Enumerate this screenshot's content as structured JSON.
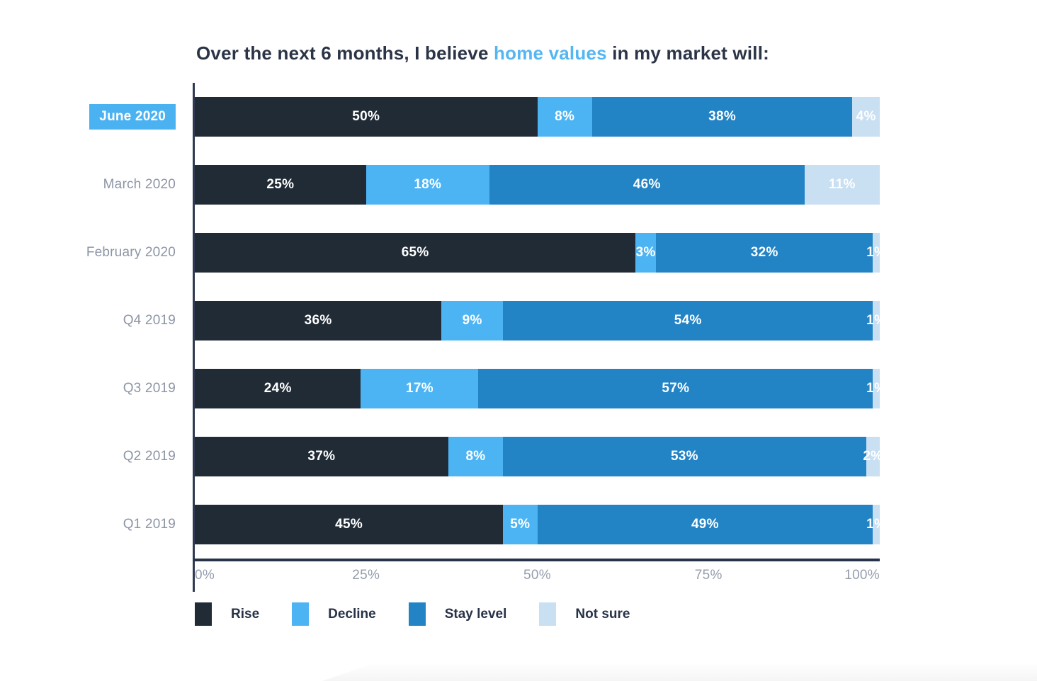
{
  "title": {
    "prefix": "Over the next 6 months, I believe ",
    "highlight": "home values",
    "suffix": " in my market will:"
  },
  "colors": {
    "rise": "#212B36",
    "decline": "#4DB4F4",
    "stay_level": "#2283C5",
    "not_sure": "#C9DFF2",
    "title_text": "#2B3447",
    "title_highlight": "#54B6F2",
    "selected_label_bg": "#4BB2F2",
    "row_label_text": "#8D95A5",
    "tick_text": "#959DAC",
    "axis_line": "#273349"
  },
  "chart_data": {
    "type": "bar",
    "orientation": "horizontal",
    "stacked": true,
    "title": "Over the next 6 months, I believe home values in my market will:",
    "xlabel": "",
    "ylabel": "",
    "xlim": [
      0,
      100
    ],
    "x_ticks": [
      "0%",
      "25%",
      "50%",
      "75%",
      "100%"
    ],
    "grid": false,
    "legend_position": "bottom",
    "value_suffix": "%",
    "selected_category": "June 2020",
    "categories": [
      "June 2020",
      "March 2020",
      "February 2020",
      "Q4 2019",
      "Q3 2019",
      "Q2 2019",
      "Q1 2019"
    ],
    "series": [
      {
        "name": "Rise",
        "color": "#212B36",
        "values": [
          50,
          25,
          65,
          36,
          24,
          37,
          45
        ]
      },
      {
        "name": "Decline",
        "color": "#4DB4F4",
        "values": [
          8,
          18,
          3,
          9,
          17,
          8,
          5
        ]
      },
      {
        "name": "Stay level",
        "color": "#2283C5",
        "values": [
          38,
          46,
          32,
          54,
          57,
          53,
          49
        ]
      },
      {
        "name": "Not sure",
        "color": "#C9DFF2",
        "values": [
          4,
          11,
          1,
          1,
          1,
          2,
          1
        ]
      }
    ]
  }
}
